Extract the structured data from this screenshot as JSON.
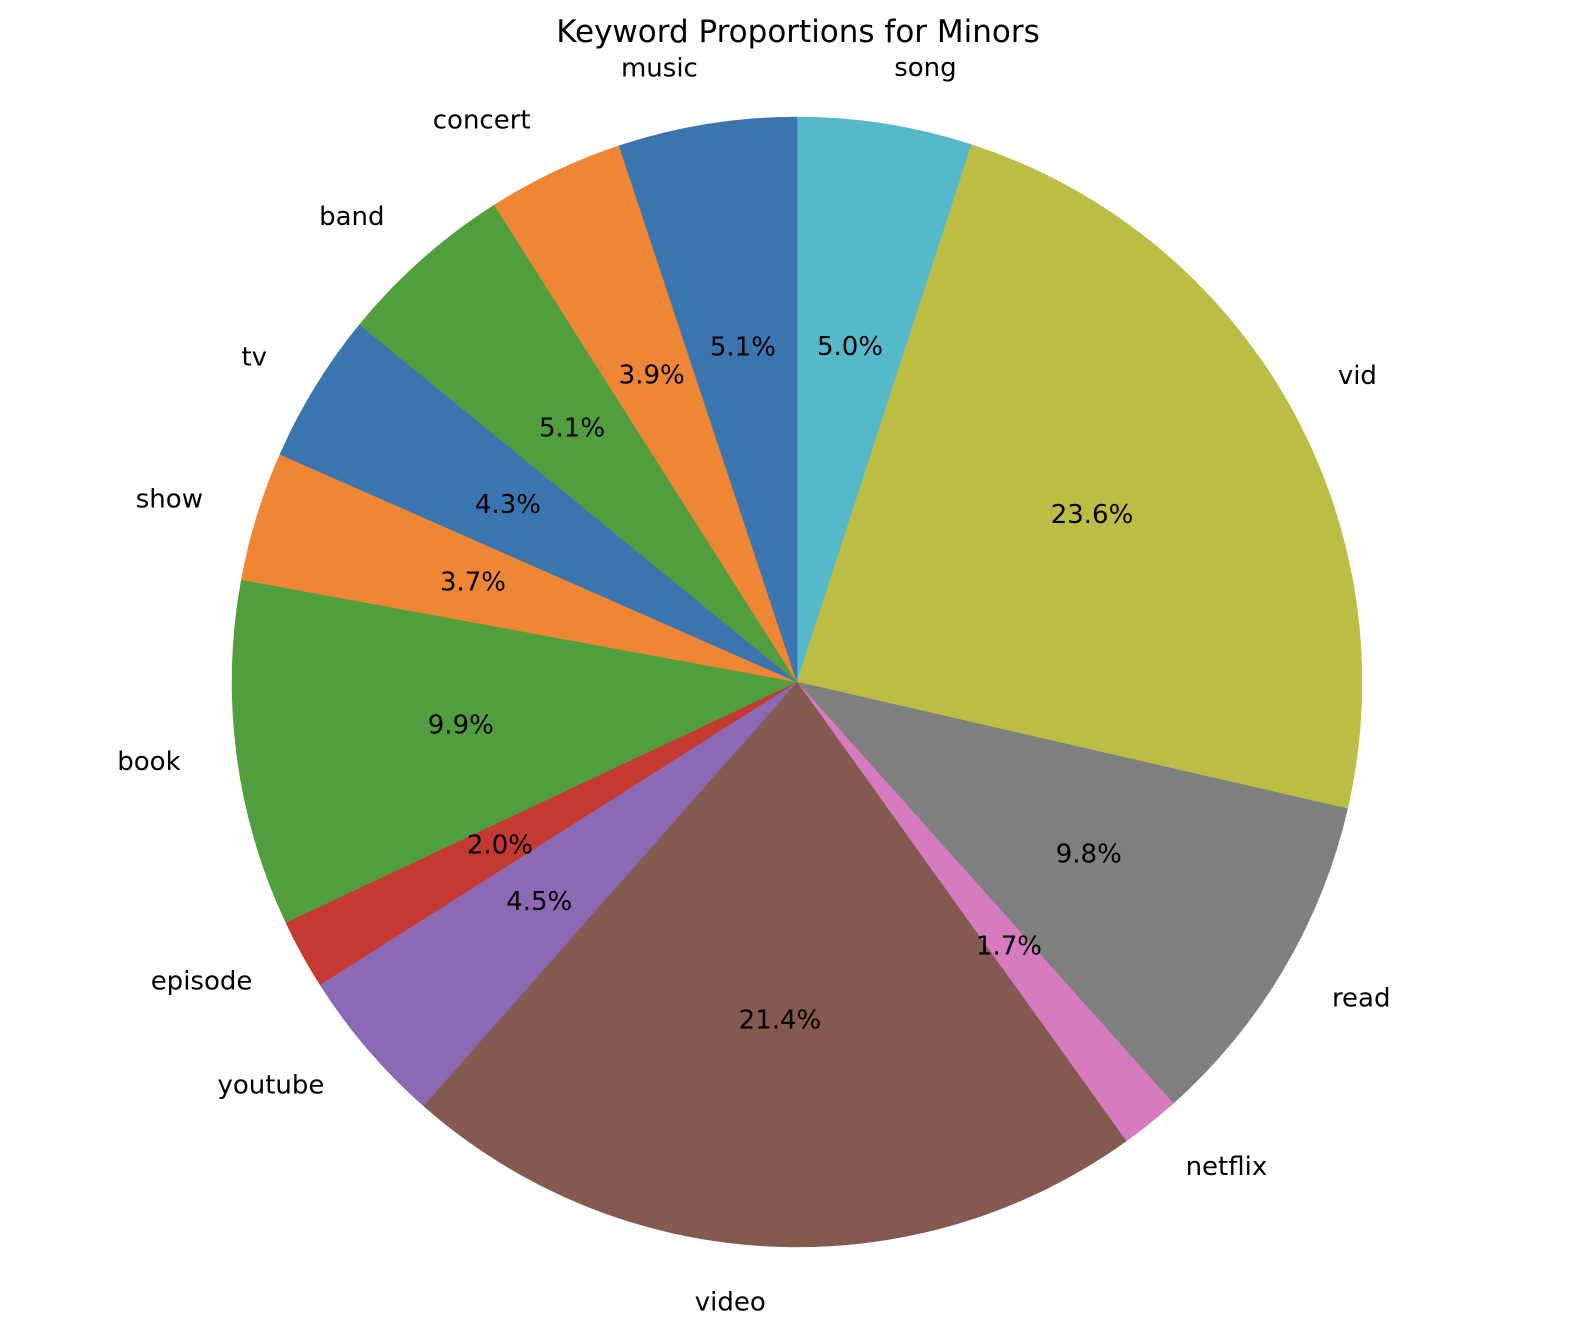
{
  "chart_data": {
    "type": "pie",
    "title": "Keyword Proportions for Minors",
    "start_angle_deg": 90,
    "direction": "clockwise",
    "slices": [
      {
        "label": "song",
        "value": 5.0,
        "pct_label": "5.0%",
        "color": "#56b9c9"
      },
      {
        "label": "vid",
        "value": 23.6,
        "pct_label": "23.6%",
        "color": "#bcbd45"
      },
      {
        "label": "read",
        "value": 9.8,
        "pct_label": "9.8%",
        "color": "#7f7f7f"
      },
      {
        "label": "netflix",
        "value": 1.7,
        "pct_label": "1.7%",
        "color": "#d67bbf"
      },
      {
        "label": "video",
        "value": 21.4,
        "pct_label": "21.4%",
        "color": "#845950"
      },
      {
        "label": "youtube",
        "value": 4.5,
        "pct_label": "4.5%",
        "color": "#8c69b4"
      },
      {
        "label": "episode",
        "value": 2.0,
        "pct_label": "2.0%",
        "color": "#c43a32"
      },
      {
        "label": "book",
        "value": 9.9,
        "pct_label": "9.9%",
        "color": "#519e3e"
      },
      {
        "label": "show",
        "value": 3.7,
        "pct_label": "3.7%",
        "color": "#ef8636"
      },
      {
        "label": "tv",
        "value": 4.3,
        "pct_label": "4.3%",
        "color": "#3b75af"
      },
      {
        "label": "band",
        "value": 5.1,
        "pct_label": "5.1%",
        "color": "#519e3e"
      },
      {
        "label": "concert",
        "value": 3.9,
        "pct_label": "3.9%",
        "color": "#ef8636"
      },
      {
        "label": "music",
        "value": 5.1,
        "pct_label": "5.1%",
        "color": "#3b75af"
      }
    ]
  }
}
